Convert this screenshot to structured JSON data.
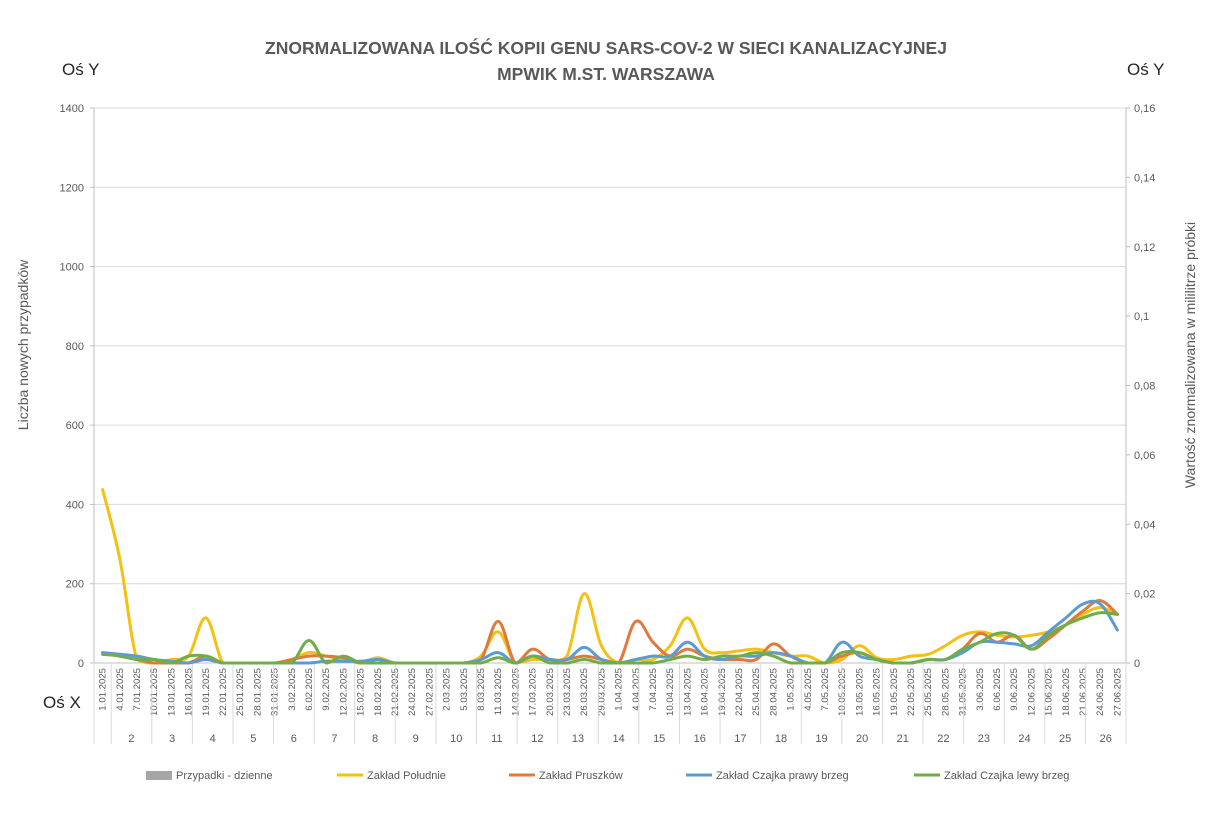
{
  "labels": {
    "y_left_corner": "Oś Y",
    "y_right_corner": "Oś Y",
    "x_corner": "Oś X"
  },
  "colors": {
    "cases": "#a6a6a6",
    "south": "#f5c010",
    "pruszkow": "#e07a3b",
    "czajka_right": "#5b9bd5",
    "czajka_left": "#70ad47",
    "grid": "#d9d9d9"
  },
  "chart_data": {
    "type": "line",
    "title": [
      "ZNORMALIZOWANA ILOŚĆ KOPII GENU SARS-COV-2 W SIECI KANALIZACYJNEJ",
      "MPWIK M.ST. WARSZAWA"
    ],
    "ylabel_left": "Liczba nowych przypadków",
    "ylabel_right": "Wartość znormalizowana  w mililitrze próbki",
    "ylim_left": [
      0,
      1400
    ],
    "yticks_left": [
      "0",
      "200",
      "400",
      "600",
      "800",
      "1000",
      "1200",
      "1400"
    ],
    "ylim_right": [
      0,
      0.16
    ],
    "yticks_right": [
      "0",
      "0,02",
      "0,04",
      "0,06",
      "0,08",
      "0,1",
      "0,12",
      "0,14",
      "0,16"
    ],
    "x_dates": [
      "1.01.2025",
      "4.01.2025",
      "7.01.2025",
      "10.01.2025",
      "13.01.2025",
      "16.01.2025",
      "19.01.2025",
      "22.01.2025",
      "25.01.2025",
      "28.01.2025",
      "31.01.2025",
      "3.02.2025",
      "6.02.2025",
      "9.02.2025",
      "12.02.2025",
      "15.02.2025",
      "18.02.2025",
      "21.02.2025",
      "24.02.2025",
      "27.02.2025",
      "2.03.2025",
      "5.03.2025",
      "8.03.2025",
      "11.03.2025",
      "14.03.2025",
      "17.03.2025",
      "20.03.2025",
      "23.03.2025",
      "26.03.2025",
      "29.03.2025",
      "1.04.2025",
      "4.04.2025",
      "7.04.2025",
      "10.04.2025",
      "13.04.2025",
      "16.04.2025",
      "19.04.2025",
      "22.04.2025",
      "25.04.2025",
      "28.04.2025",
      "1.05.2025",
      "4.05.2025",
      "7.05.2025",
      "10.05.2025",
      "13.05.2025",
      "16.05.2025",
      "19.05.2025",
      "22.05.2025",
      "25.05.2025",
      "28.05.2025",
      "31.05.2025",
      "3.06.2025",
      "6.06.2025",
      "9.06.2025",
      "12.06.2025",
      "15.06.2025",
      "18.06.2025",
      "21.06.2025",
      "24.06.2025",
      "27.06.2025"
    ],
    "weeks": [
      "2",
      "3",
      "4",
      "5",
      "6",
      "7",
      "8",
      "9",
      "10",
      "11",
      "12",
      "13",
      "14",
      "15",
      "16",
      "17",
      "18",
      "19",
      "20",
      "21",
      "22",
      "23",
      "24",
      "25",
      "26"
    ],
    "grid": true,
    "legend_position": "bottom",
    "series": [
      {
        "name": "Przypadki - dzienne",
        "axis": "left",
        "kind": "column",
        "color_key": "cases",
        "points": []
      },
      {
        "name": "Zakład Południe",
        "axis": "right",
        "color_key": "south",
        "points": [
          [
            0,
            0.05
          ],
          [
            1,
            0.03
          ],
          [
            2,
            0.001
          ],
          [
            3,
            0.0
          ],
          [
            4,
            0.001
          ],
          [
            5,
            0.002
          ],
          [
            6,
            0.013
          ],
          [
            7,
            0.0
          ],
          [
            8,
            0.0
          ],
          [
            9,
            0.0
          ],
          [
            10,
            0.0
          ],
          [
            11,
            0.001
          ],
          [
            12,
            0.003
          ],
          [
            13,
            0.002
          ],
          [
            14,
            0.001
          ],
          [
            15,
            0.0
          ],
          [
            16,
            0.0015
          ],
          [
            17,
            0.0
          ],
          [
            18,
            0.0
          ],
          [
            19,
            0.0
          ],
          [
            20,
            0.0
          ],
          [
            21,
            0.0
          ],
          [
            22,
            0.002
          ],
          [
            23,
            0.009
          ],
          [
            24,
            0.0
          ],
          [
            25,
            0.001
          ],
          [
            26,
            0.001
          ],
          [
            27,
            0.002
          ],
          [
            28,
            0.02
          ],
          [
            29,
            0.005
          ],
          [
            30,
            0.0
          ],
          [
            31,
            0.001
          ],
          [
            32,
            0.001
          ],
          [
            33,
            0.005
          ],
          [
            34,
            0.013
          ],
          [
            35,
            0.004
          ],
          [
            36,
            0.003
          ],
          [
            37,
            0.0035
          ],
          [
            38,
            0.004
          ],
          [
            39,
            0.003
          ],
          [
            40,
            0.002
          ],
          [
            41,
            0.002
          ],
          [
            42,
            0.0
          ],
          [
            43,
            0.001
          ],
          [
            44,
            0.005
          ],
          [
            45,
            0.0015
          ],
          [
            46,
            0.001
          ],
          [
            47,
            0.002
          ],
          [
            48,
            0.0025
          ],
          [
            49,
            0.005
          ],
          [
            50,
            0.008
          ],
          [
            51,
            0.009
          ],
          [
            52,
            0.008
          ],
          [
            53,
            0.0075
          ],
          [
            54,
            0.008
          ],
          [
            55,
            0.009
          ],
          [
            56,
            0.011
          ],
          [
            57,
            0.014
          ],
          [
            58,
            0.016
          ],
          [
            59,
            0.014
          ]
        ]
      },
      {
        "name": "Zakład Pruszków",
        "axis": "right",
        "color_key": "pruszkow",
        "points": [
          [
            0,
            0.003
          ],
          [
            1,
            0.002
          ],
          [
            2,
            0.001
          ],
          [
            3,
            0.0
          ],
          [
            4,
            0.0
          ],
          [
            5,
            0.0
          ],
          [
            6,
            0.002
          ],
          [
            7,
            0.0
          ],
          [
            8,
            0.0
          ],
          [
            9,
            0.0
          ],
          [
            10,
            0.0
          ],
          [
            11,
            0.001
          ],
          [
            12,
            0.002
          ],
          [
            13,
            0.002
          ],
          [
            14,
            0.0015
          ],
          [
            15,
            0.0
          ],
          [
            16,
            0.001
          ],
          [
            17,
            0.0
          ],
          [
            18,
            0.0
          ],
          [
            19,
            0.0
          ],
          [
            20,
            0.0
          ],
          [
            21,
            0.0
          ],
          [
            22,
            0.001
          ],
          [
            23,
            0.012
          ],
          [
            24,
            0.0
          ],
          [
            25,
            0.004
          ],
          [
            26,
            0.001
          ],
          [
            27,
            0.001
          ],
          [
            28,
            0.002
          ],
          [
            29,
            0.001
          ],
          [
            30,
            0.0
          ],
          [
            31,
            0.012
          ],
          [
            32,
            0.006
          ],
          [
            33,
            0.002
          ],
          [
            34,
            0.004
          ],
          [
            35,
            0.002
          ],
          [
            36,
            0.001
          ],
          [
            37,
            0.001
          ],
          [
            38,
            0.001
          ],
          [
            39,
            0.0055
          ],
          [
            40,
            0.002
          ],
          [
            41,
            0.0
          ],
          [
            42,
            0.0
          ],
          [
            43,
            0.002
          ],
          [
            44,
            0.003
          ],
          [
            45,
            0.001
          ],
          [
            46,
            0.0
          ],
          [
            47,
            0.0
          ],
          [
            48,
            0.001
          ],
          [
            49,
            0.001
          ],
          [
            50,
            0.004
          ],
          [
            51,
            0.0085
          ],
          [
            52,
            0.006
          ],
          [
            53,
            0.008
          ],
          [
            54,
            0.004
          ],
          [
            55,
            0.007
          ],
          [
            56,
            0.011
          ],
          [
            57,
            0.015
          ],
          [
            58,
            0.018
          ],
          [
            59,
            0.014
          ]
        ]
      },
      {
        "name": "Zakład Czajka prawy brzeg",
        "axis": "right",
        "color_key": "czajka_right",
        "points": [
          [
            0,
            0.003
          ],
          [
            1,
            0.0025
          ],
          [
            2,
            0.002
          ],
          [
            3,
            0.001
          ],
          [
            4,
            0.0005
          ],
          [
            5,
            0.0
          ],
          [
            6,
            0.001
          ],
          [
            7,
            0.0
          ],
          [
            8,
            0.0
          ],
          [
            9,
            0.0
          ],
          [
            10,
            0.0
          ],
          [
            11,
            0.0
          ],
          [
            12,
            0.0
          ],
          [
            13,
            0.0005
          ],
          [
            14,
            0.0005
          ],
          [
            15,
            0.0005
          ],
          [
            16,
            0.001
          ],
          [
            17,
            0.0
          ],
          [
            18,
            0.0
          ],
          [
            19,
            0.0
          ],
          [
            20,
            0.0
          ],
          [
            21,
            0.0
          ],
          [
            22,
            0.001
          ],
          [
            23,
            0.003
          ],
          [
            24,
            0.0
          ],
          [
            25,
            0.002
          ],
          [
            26,
            0.001
          ],
          [
            27,
            0.001
          ],
          [
            28,
            0.0045
          ],
          [
            29,
            0.001
          ],
          [
            30,
            0.0
          ],
          [
            31,
            0.001
          ],
          [
            32,
            0.002
          ],
          [
            33,
            0.002
          ],
          [
            34,
            0.006
          ],
          [
            35,
            0.002
          ],
          [
            36,
            0.001
          ],
          [
            37,
            0.002
          ],
          [
            38,
            0.002
          ],
          [
            39,
            0.003
          ],
          [
            40,
            0.002
          ],
          [
            41,
            0.0
          ],
          [
            42,
            0.0
          ],
          [
            43,
            0.006
          ],
          [
            44,
            0.002
          ],
          [
            45,
            0.001
          ],
          [
            46,
            0.0
          ],
          [
            47,
            0.0
          ],
          [
            48,
            0.001
          ],
          [
            49,
            0.001
          ],
          [
            50,
            0.003
          ],
          [
            51,
            0.006
          ],
          [
            52,
            0.006
          ],
          [
            53,
            0.0055
          ],
          [
            54,
            0.005
          ],
          [
            55,
            0.009
          ],
          [
            56,
            0.013
          ],
          [
            57,
            0.017
          ],
          [
            58,
            0.017
          ],
          [
            59,
            0.0095
          ]
        ]
      },
      {
        "name": "Zakład Czajka lewy brzeg",
        "axis": "right",
        "color_key": "czajka_left",
        "points": [
          [
            0,
            0.0025
          ],
          [
            1,
            0.002
          ],
          [
            2,
            0.001
          ],
          [
            3,
            0.001
          ],
          [
            4,
            0.0
          ],
          [
            5,
            0.002
          ],
          [
            6,
            0.002
          ],
          [
            7,
            0.0
          ],
          [
            8,
            0.0
          ],
          [
            9,
            0.0
          ],
          [
            10,
            0.0
          ],
          [
            11,
            0.0
          ],
          [
            12,
            0.0065
          ],
          [
            13,
            0.0
          ],
          [
            14,
            0.002
          ],
          [
            15,
            0.0
          ],
          [
            16,
            0.0
          ],
          [
            17,
            0.0
          ],
          [
            18,
            0.0
          ],
          [
            19,
            0.0
          ],
          [
            20,
            0.0
          ],
          [
            21,
            0.0
          ],
          [
            22,
            0.0
          ],
          [
            23,
            0.0015
          ],
          [
            24,
            0.0
          ],
          [
            25,
            0.002
          ],
          [
            26,
            0.0
          ],
          [
            27,
            0.0
          ],
          [
            28,
            0.001
          ],
          [
            29,
            0.0
          ],
          [
            30,
            0.0
          ],
          [
            31,
            0.0
          ],
          [
            32,
            0.0
          ],
          [
            33,
            0.001
          ],
          [
            34,
            0.002
          ],
          [
            35,
            0.001
          ],
          [
            36,
            0.002
          ],
          [
            37,
            0.002
          ],
          [
            38,
            0.003
          ],
          [
            39,
            0.002
          ],
          [
            40,
            0.0
          ],
          [
            41,
            0.0
          ],
          [
            42,
            0.0
          ],
          [
            43,
            0.003
          ],
          [
            44,
            0.003
          ],
          [
            45,
            0.001
          ],
          [
            46,
            0.0
          ],
          [
            47,
            0.0
          ],
          [
            48,
            0.001
          ],
          [
            49,
            0.001
          ],
          [
            50,
            0.004
          ],
          [
            51,
            0.006
          ],
          [
            52,
            0.0085
          ],
          [
            53,
            0.008
          ],
          [
            54,
            0.004
          ],
          [
            55,
            0.008
          ],
          [
            56,
            0.011
          ],
          [
            57,
            0.013
          ],
          [
            58,
            0.0145
          ],
          [
            59,
            0.014
          ]
        ]
      }
    ]
  }
}
